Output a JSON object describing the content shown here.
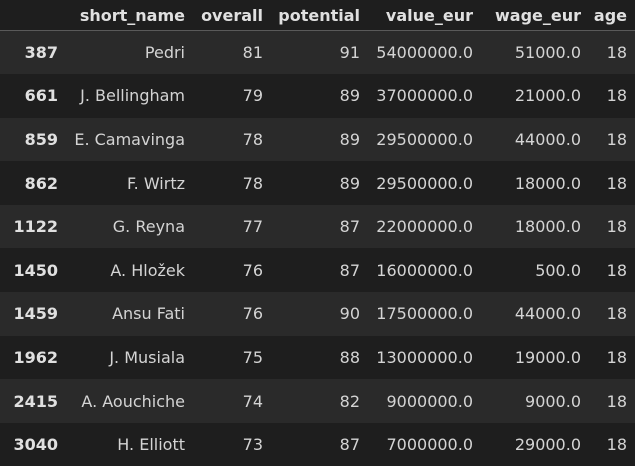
{
  "table": {
    "columns": [
      "",
      "short_name",
      "overall",
      "potential",
      "value_eur",
      "wage_eur",
      "age"
    ],
    "rows": [
      {
        "index": "387",
        "short_name": "Pedri",
        "overall": "81",
        "potential": "91",
        "value_eur": "54000000.0",
        "wage_eur": "51000.0",
        "age": "18"
      },
      {
        "index": "661",
        "short_name": "J. Bellingham",
        "overall": "79",
        "potential": "89",
        "value_eur": "37000000.0",
        "wage_eur": "21000.0",
        "age": "18"
      },
      {
        "index": "859",
        "short_name": "E. Camavinga",
        "overall": "78",
        "potential": "89",
        "value_eur": "29500000.0",
        "wage_eur": "44000.0",
        "age": "18"
      },
      {
        "index": "862",
        "short_name": "F. Wirtz",
        "overall": "78",
        "potential": "89",
        "value_eur": "29500000.0",
        "wage_eur": "18000.0",
        "age": "18"
      },
      {
        "index": "1122",
        "short_name": "G. Reyna",
        "overall": "77",
        "potential": "87",
        "value_eur": "22000000.0",
        "wage_eur": "18000.0",
        "age": "18"
      },
      {
        "index": "1450",
        "short_name": "A. Hložek",
        "overall": "76",
        "potential": "87",
        "value_eur": "16000000.0",
        "wage_eur": "500.0",
        "age": "18"
      },
      {
        "index": "1459",
        "short_name": "Ansu Fati",
        "overall": "76",
        "potential": "90",
        "value_eur": "17500000.0",
        "wage_eur": "44000.0",
        "age": "18"
      },
      {
        "index": "1962",
        "short_name": "J. Musiala",
        "overall": "75",
        "potential": "88",
        "value_eur": "13000000.0",
        "wage_eur": "19000.0",
        "age": "18"
      },
      {
        "index": "2415",
        "short_name": "A. Aouchiche",
        "overall": "74",
        "potential": "82",
        "value_eur": "9000000.0",
        "wage_eur": "9000.0",
        "age": "18"
      },
      {
        "index": "3040",
        "short_name": "H. Elliott",
        "overall": "73",
        "potential": "87",
        "value_eur": "7000000.0",
        "wage_eur": "29000.0",
        "age": "18"
      }
    ]
  },
  "colors": {
    "background": "#1e1e1e",
    "stripe": "#2a2a2a",
    "text": "#d4d4d4",
    "header_text": "#e0e0e0"
  }
}
